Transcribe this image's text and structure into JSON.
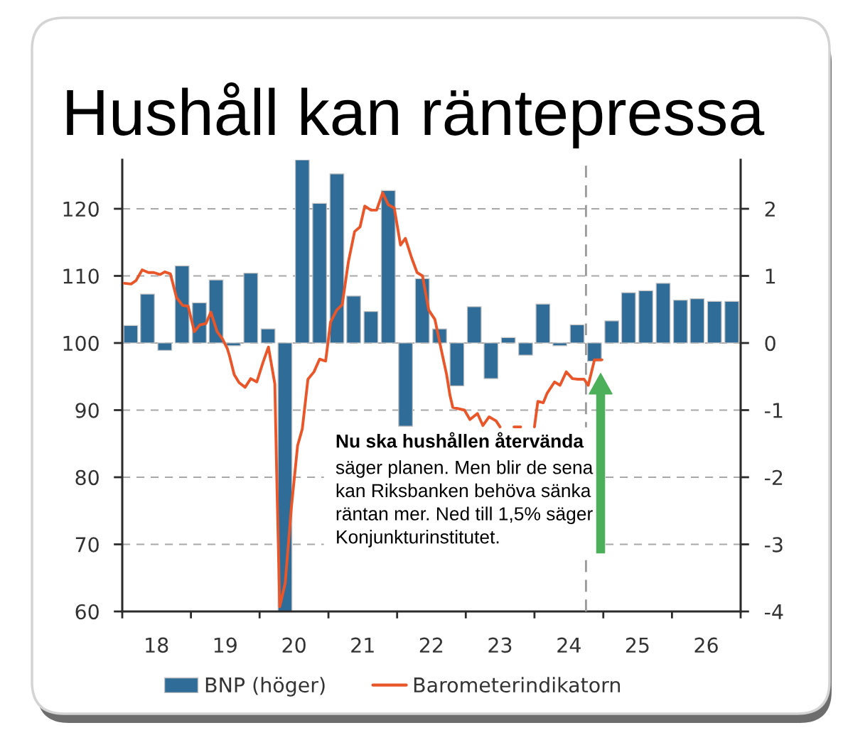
{
  "chart_data": {
    "type": "bar",
    "title": "Hushåll kan räntepressa",
    "xlim": [
      "2018-01-01",
      "2027-01-01"
    ],
    "xticks": [
      {
        "value": "2018-01-01",
        "label": null
      },
      {
        "value": "2018-07-02",
        "label": "18"
      },
      {
        "value": "2019-01-01",
        "label": null
      },
      {
        "value": "2019-07-02",
        "label": "19"
      },
      {
        "value": "2020-01-01",
        "label": null
      },
      {
        "value": "2020-07-02",
        "label": "20"
      },
      {
        "value": "2021-01-01",
        "label": null
      },
      {
        "value": "2021-07-02",
        "label": "21"
      },
      {
        "value": "2022-01-01",
        "label": null
      },
      {
        "value": "2022-07-02",
        "label": "22"
      },
      {
        "value": "2023-01-01",
        "label": null
      },
      {
        "value": "2023-07-02",
        "label": "23"
      },
      {
        "value": "2024-01-01",
        "label": null
      },
      {
        "value": "2024-07-02",
        "label": "24"
      },
      {
        "value": "2025-01-01",
        "label": null
      },
      {
        "value": "2025-07-02",
        "label": "25"
      },
      {
        "value": "2026-01-01",
        "label": null
      },
      {
        "value": "2026-07-02",
        "label": "26"
      },
      {
        "value": "2027-01-01",
        "label": null
      }
    ],
    "ylim": [
      60,
      127.3
    ],
    "yticks": [
      60,
      70,
      80,
      90,
      100,
      110,
      120
    ],
    "y2lim": [
      -4,
      2.73
    ],
    "y2ticks": [
      -4,
      -3,
      -2,
      -1,
      0,
      1,
      2
    ],
    "grid": "y",
    "legend": "bottom",
    "series": [
      {
        "name": "BNP (höger)",
        "axis": "y2",
        "color": "#2f6d98",
        "x": [
          "2018-02-15",
          "2018-05-15",
          "2018-08-15",
          "2018-11-15",
          "2019-02-15",
          "2019-05-15",
          "2019-08-15",
          "2019-11-15",
          "2020-02-15",
          "2020-05-15",
          "2020-08-15",
          "2020-11-15",
          "2021-02-15",
          "2021-05-15",
          "2021-08-15",
          "2021-11-15",
          "2022-02-15",
          "2022-05-15",
          "2022-08-15",
          "2022-11-15",
          "2023-02-15",
          "2023-05-15",
          "2023-08-15",
          "2023-11-15",
          "2024-02-15",
          "2024-05-15",
          "2024-08-15",
          "2024-11-15",
          "2025-02-15",
          "2025-05-15",
          "2025-08-15",
          "2025-11-15",
          "2026-02-15",
          "2026-05-15",
          "2026-08-15",
          "2026-11-15"
        ],
        "values": [
          0.26,
          0.73,
          -0.11,
          1.15,
          0.6,
          0.94,
          -0.04,
          1.04,
          0.21,
          -4,
          2.73,
          2.08,
          2.52,
          0.7,
          0.47,
          2.27,
          -1.24,
          0.96,
          0.21,
          -0.64,
          0.54,
          -0.53,
          0.08,
          -0.18,
          0.58,
          -0.04,
          0.27,
          -0.27,
          0.33,
          0.75,
          0.78,
          0.89,
          0.64,
          0.66,
          0.62,
          0.62
        ]
      },
      {
        "name": "Barometerindikatorn",
        "type": "line",
        "color": "#e8562a",
        "x": [
          "2018-01-12",
          "2018-02-17",
          "2018-03-15",
          "2018-04-17",
          "2018-05-20",
          "2018-06-18",
          "2018-07-21",
          "2018-08-15",
          "2018-09-14",
          "2018-10-16",
          "2018-11-18",
          "2018-12-17",
          "2019-01-19",
          "2019-02-17",
          "2019-03-22",
          "2019-04-17",
          "2019-05-20",
          "2019-06-18",
          "2019-07-13",
          "2019-07-24",
          "2019-08-19",
          "2019-09-14",
          "2019-10-16",
          "2019-11-15",
          "2019-12-17",
          "2020-01-19",
          "2020-02-17",
          "2020-03-22",
          "2020-04-02",
          "2020-04-17",
          "2020-05-16",
          "2020-06-18",
          "2020-07-21",
          "2020-08-15",
          "2020-09-14",
          "2020-10-16",
          "2020-11-15",
          "2020-12-17",
          "2021-01-12",
          "2021-02-14",
          "2021-03-15",
          "2021-04-17",
          "2021-05-20",
          "2021-06-18",
          "2021-07-13",
          "2021-08-15",
          "2021-09-14",
          "2021-10-16",
          "2021-11-15",
          "2021-12-17",
          "2022-01-19",
          "2022-02-14",
          "2022-03-19",
          "2022-04-17",
          "2022-05-16",
          "2022-06-18",
          "2022-07-21",
          "2022-08-19",
          "2022-09-21",
          "2022-10-09",
          "2022-10-24",
          "2022-12-25",
          "2023-01-23",
          "2023-03-04",
          "2023-04-02",
          "2023-05-05",
          "2023-06-11",
          "2023-07-02",
          "2023-08-08",
          "2023-09-14",
          "2023-10-20",
          "2023-11-26",
          "2024-01-01",
          "2024-01-19",
          "2024-02-17",
          "2024-03-08",
          "2024-04-17",
          "2024-05-16",
          "2024-06-18",
          "2024-07-21",
          "2024-08-19",
          "2024-09-21",
          "2024-10-13",
          "2024-11-15",
          "2024-12-25"
        ],
        "values": [
          108.9,
          108.8,
          109.3,
          110.9,
          110.5,
          110.5,
          110.2,
          110.6,
          110.3,
          106.8,
          105.6,
          105.5,
          101.7,
          102.7,
          102.9,
          104.6,
          101.7,
          100.6,
          99.2,
          98.2,
          95.3,
          94.1,
          93.4,
          94.7,
          94.2,
          97.1,
          99.4,
          93.9,
          79.1,
          60.7,
          64.2,
          75.5,
          84.7,
          87.2,
          94.6,
          95.7,
          97.6,
          97.3,
          103.1,
          104.9,
          105.7,
          112.1,
          116.6,
          117.3,
          120.4,
          119.8,
          119.8,
          122.4,
          120.6,
          120.1,
          114.6,
          115.6,
          112.7,
          110.5,
          110.0,
          104.9,
          103.5,
          99.6,
          95.3,
          92.2,
          90.4,
          90.0,
          88.6,
          89.5,
          87.7,
          89.0,
          88.4,
          87.5,
          null,
          87.5,
          87.5,
          null,
          87.5,
          91.3,
          91.1,
          92.5,
          94.2,
          93.7,
          95.7,
          94.7,
          94.6,
          94.6,
          93.7,
          97.5,
          97.5
        ]
      }
    ],
    "ref_lines": [
      {
        "axis": "x",
        "value": "2024-10-01",
        "color": "#9a9a9a",
        "line_style": "dashed"
      }
    ],
    "annotations": [
      "Nu ska hushållen återvända",
      "säger planen. Men blir de sena\nkan Riksbanken behöva sänka\nräntan mer. Ned till 1,5% säger\nKonjunkturinstitutet."
    ]
  }
}
